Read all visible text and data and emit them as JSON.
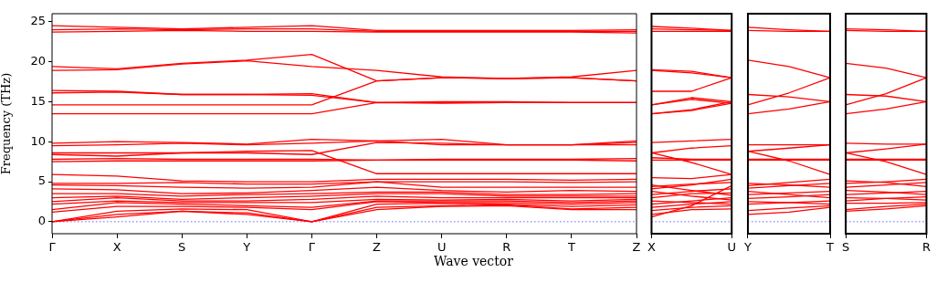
{
  "chart_data": [
    {
      "type": "line",
      "xlabel": "Wave vector",
      "ylabel": "Frequency (THz)",
      "categories": [
        "Γ",
        "X",
        "S",
        "Y",
        "Γ",
        "Z",
        "U",
        "R",
        "T",
        "Z"
      ],
      "ylim": [
        -1.5,
        26
      ],
      "yticks": [
        0,
        5,
        10,
        15,
        20,
        25
      ],
      "ref_lines": [
        {
          "axis": "y",
          "value": 0,
          "color": "#0000ff",
          "line_style": "dotted"
        }
      ],
      "series": [
        {
          "color": "#ff0000",
          "values": [
            24.5,
            24.3,
            24.1,
            24.3,
            24.5,
            23.9,
            23.9,
            23.9,
            23.9,
            24.0
          ]
        },
        {
          "color": "#ff0000",
          "values": [
            24.0,
            24.1,
            24.0,
            24.1,
            24.1,
            23.8,
            23.8,
            23.8,
            23.8,
            23.8
          ]
        },
        {
          "color": "#ff0000",
          "values": [
            23.7,
            23.8,
            23.9,
            23.8,
            23.8,
            23.7,
            23.7,
            23.7,
            23.7,
            23.6
          ]
        },
        {
          "color": "#ff0000",
          "values": [
            19.4,
            19.1,
            19.8,
            20.2,
            20.9,
            17.6,
            18.0,
            17.9,
            18.0,
            17.6
          ]
        },
        {
          "color": "#ff0000",
          "values": [
            18.9,
            19.0,
            19.7,
            20.1,
            19.4,
            18.9,
            18.1,
            17.9,
            18.1,
            18.9
          ]
        },
        {
          "color": "#ff0000",
          "values": [
            16.4,
            16.3,
            15.9,
            15.9,
            16.0,
            14.9,
            14.9,
            14.9,
            14.9,
            14.9
          ]
        },
        {
          "color": "#ff0000",
          "values": [
            16.1,
            16.2,
            15.9,
            15.9,
            15.8,
            14.9,
            15.0,
            15.0,
            14.9,
            14.9
          ]
        },
        {
          "color": "#ff0000",
          "values": [
            14.6,
            14.6,
            14.6,
            14.6,
            14.6,
            17.6,
            18.0,
            17.9,
            18.0,
            17.6
          ]
        },
        {
          "color": "#ff0000",
          "values": [
            13.5,
            13.5,
            13.5,
            13.5,
            13.5,
            14.9,
            14.8,
            14.9,
            14.9,
            14.9
          ]
        },
        {
          "color": "#ff0000",
          "values": [
            9.8,
            10.0,
            9.9,
            9.7,
            10.3,
            10.1,
            10.3,
            9.6,
            9.6,
            10.1
          ]
        },
        {
          "color": "#ff0000",
          "values": [
            9.5,
            9.6,
            9.8,
            9.6,
            9.8,
            10.1,
            9.6,
            9.6,
            9.6,
            9.6
          ]
        },
        {
          "color": "#ff0000",
          "values": [
            8.6,
            8.6,
            8.6,
            8.8,
            8.9,
            6.0,
            6.0,
            6.0,
            6.0,
            6.0
          ]
        },
        {
          "color": "#ff0000",
          "values": [
            8.4,
            8.2,
            8.6,
            8.6,
            8.4,
            9.9,
            9.8,
            9.6,
            9.6,
            9.9
          ]
        },
        {
          "color": "#ff0000",
          "values": [
            7.8,
            7.9,
            7.8,
            7.8,
            7.8,
            7.7,
            7.8,
            7.8,
            7.8,
            7.9
          ]
        },
        {
          "color": "#ff0000",
          "values": [
            7.5,
            7.6,
            7.6,
            7.6,
            7.6,
            7.7,
            7.7,
            7.7,
            7.7,
            7.6
          ]
        },
        {
          "color": "#ff0000",
          "values": [
            5.9,
            5.7,
            5.1,
            5.0,
            5.0,
            5.3,
            5.3,
            5.3,
            5.2,
            5.3
          ]
        },
        {
          "color": "#ff0000",
          "values": [
            4.8,
            4.8,
            4.9,
            4.7,
            4.7,
            5.0,
            5.0,
            5.0,
            4.9,
            5.0
          ]
        },
        {
          "color": "#ff0000",
          "values": [
            4.6,
            4.5,
            4.3,
            4.2,
            4.3,
            5.0,
            4.3,
            4.3,
            4.3,
            4.3
          ]
        },
        {
          "color": "#ff0000",
          "values": [
            4.1,
            4.0,
            3.5,
            3.6,
            3.9,
            4.3,
            3.9,
            3.7,
            3.9,
            3.8
          ]
        },
        {
          "color": "#ff0000",
          "values": [
            3.5,
            3.5,
            3.2,
            3.4,
            3.5,
            3.7,
            3.7,
            3.4,
            3.4,
            3.5
          ]
        },
        {
          "color": "#ff0000",
          "values": [
            3.0,
            3.2,
            2.8,
            3.0,
            3.2,
            3.5,
            3.5,
            3.2,
            3.2,
            3.2
          ]
        },
        {
          "color": "#ff0000",
          "values": [
            2.5,
            3.0,
            2.6,
            2.6,
            2.8,
            3.2,
            3.0,
            3.0,
            3.0,
            3.0
          ]
        },
        {
          "color": "#ff0000",
          "values": [
            2.2,
            2.6,
            2.4,
            2.4,
            2.4,
            2.8,
            2.7,
            2.8,
            2.6,
            2.8
          ]
        },
        {
          "color": "#ff0000",
          "values": [
            1.5,
            2.4,
            2.2,
            2.0,
            1.8,
            2.6,
            2.6,
            2.6,
            2.4,
            2.6
          ]
        },
        {
          "color": "#ff0000",
          "values": [
            1.2,
            1.9,
            1.9,
            1.8,
            1.5,
            2.5,
            2.4,
            2.4,
            2.2,
            2.4
          ]
        },
        {
          "color": "#ff0000",
          "values": [
            0,
            1.3,
            1.6,
            1.5,
            0,
            2.2,
            2.3,
            2.2,
            1.9,
            2.1
          ]
        },
        {
          "color": "#ff0000",
          "values": [
            0,
            0.9,
            1.3,
            1.1,
            0,
            1.8,
            2.0,
            2.1,
            1.6,
            1.8
          ]
        },
        {
          "color": "#ff0000",
          "values": [
            0,
            0.6,
            1.3,
            0.9,
            0,
            1.5,
            1.9,
            2.0,
            1.5,
            1.5
          ]
        }
      ]
    },
    {
      "type": "line",
      "tick_labels": "x",
      "categories": [
        "X",
        null,
        "U"
      ],
      "ylim": [
        -1.5,
        26
      ],
      "yticks": [
        0,
        5,
        10,
        15,
        20,
        25
      ],
      "ref_lines": [
        {
          "axis": "y",
          "value": 0,
          "color": "#0000ff",
          "line_style": "dotted"
        }
      ],
      "series": [
        {
          "color": "#ff0000",
          "values": [
            24.4,
            24.2,
            23.9
          ]
        },
        {
          "color": "#ff0000",
          "values": [
            24.1,
            24.0,
            23.9
          ]
        },
        {
          "color": "#ff0000",
          "values": [
            23.8,
            23.8,
            23.8
          ]
        },
        {
          "color": "#ff0000",
          "values": [
            19.0,
            18.8,
            18.0
          ]
        },
        {
          "color": "#ff0000",
          "values": [
            18.9,
            18.6,
            18.0
          ]
        },
        {
          "color": "#ff0000",
          "values": [
            16.3,
            16.3,
            18.0
          ]
        },
        {
          "color": "#ff0000",
          "values": [
            14.6,
            15.5,
            15.0
          ]
        },
        {
          "color": "#ff0000",
          "values": [
            14.6,
            15.3,
            14.8
          ]
        },
        {
          "color": "#ff0000",
          "values": [
            13.5,
            14.0,
            15.0
          ]
        },
        {
          "color": "#ff0000",
          "values": [
            13.5,
            13.9,
            14.8
          ]
        },
        {
          "color": "#ff0000",
          "values": [
            9.9,
            10.1,
            10.3
          ]
        },
        {
          "color": "#ff0000",
          "values": [
            8.6,
            9.2,
            9.5
          ]
        },
        {
          "color": "#ff0000",
          "values": [
            8.6,
            7.4,
            5.9
          ]
        },
        {
          "color": "#ff0000",
          "values": [
            8.0,
            7.8,
            7.8
          ]
        },
        {
          "color": "#ff0000",
          "values": [
            7.7,
            7.7,
            7.7
          ]
        },
        {
          "color": "#ff0000",
          "values": [
            5.5,
            5.4,
            5.9
          ]
        },
        {
          "color": "#ff0000",
          "values": [
            4.6,
            3.9,
            3.3
          ]
        },
        {
          "color": "#ff0000",
          "values": [
            4.4,
            4.7,
            4.9
          ]
        },
        {
          "color": "#ff0000",
          "values": [
            4.1,
            4.6,
            5.3
          ]
        },
        {
          "color": "#ff0000",
          "values": [
            3.8,
            3.2,
            2.7
          ]
        },
        {
          "color": "#ff0000",
          "values": [
            3.4,
            3.8,
            4.1
          ]
        },
        {
          "color": "#ff0000",
          "values": [
            3.0,
            3.5,
            3.6
          ]
        },
        {
          "color": "#ff0000",
          "values": [
            2.6,
            2.4,
            2.2
          ]
        },
        {
          "color": "#ff0000",
          "values": [
            2.2,
            2.6,
            3.0
          ]
        },
        {
          "color": "#ff0000",
          "values": [
            1.8,
            2.2,
            2.5
          ]
        },
        {
          "color": "#ff0000",
          "values": [
            1.4,
            1.8,
            2.0
          ]
        },
        {
          "color": "#ff0000",
          "values": [
            0.9,
            1.5,
            1.6
          ]
        },
        {
          "color": "#ff0000",
          "values": [
            0.6,
            2.0,
            4.5
          ]
        }
      ]
    },
    {
      "type": "line",
      "tick_labels": "x",
      "categories": [
        "Y",
        null,
        "T"
      ],
      "ylim": [
        -1.5,
        26
      ],
      "yticks": [
        0,
        5,
        10,
        15,
        20,
        25
      ],
      "ref_lines": [
        {
          "axis": "y",
          "value": 0,
          "color": "#0000ff",
          "line_style": "dotted"
        }
      ],
      "series": [
        {
          "color": "#ff0000",
          "values": [
            24.3,
            24.0,
            23.8
          ]
        },
        {
          "color": "#ff0000",
          "values": [
            23.9,
            23.8,
            23.8
          ]
        },
        {
          "color": "#ff0000",
          "values": [
            20.2,
            19.4,
            18.0
          ]
        },
        {
          "color": "#ff0000",
          "values": [
            15.9,
            15.6,
            15.0
          ]
        },
        {
          "color": "#ff0000",
          "values": [
            14.6,
            16.1,
            18.0
          ]
        },
        {
          "color": "#ff0000",
          "values": [
            13.5,
            14.1,
            15.0
          ]
        },
        {
          "color": "#ff0000",
          "values": [
            9.6,
            9.6,
            9.6
          ]
        },
        {
          "color": "#ff0000",
          "values": [
            8.8,
            9.2,
            9.6
          ]
        },
        {
          "color": "#ff0000",
          "values": [
            8.8,
            7.6,
            5.9
          ]
        },
        {
          "color": "#ff0000",
          "values": [
            7.8,
            7.8,
            7.8
          ]
        },
        {
          "color": "#ff0000",
          "values": [
            7.7,
            7.7,
            7.7
          ]
        },
        {
          "color": "#ff0000",
          "values": [
            4.8,
            4.6,
            4.3
          ]
        },
        {
          "color": "#ff0000",
          "values": [
            4.5,
            4.9,
            5.3
          ]
        },
        {
          "color": "#ff0000",
          "values": [
            4.2,
            4.5,
            4.8
          ]
        },
        {
          "color": "#ff0000",
          "values": [
            3.8,
            3.4,
            3.0
          ]
        },
        {
          "color": "#ff0000",
          "values": [
            3.4,
            3.6,
            3.8
          ]
        },
        {
          "color": "#ff0000",
          "values": [
            2.9,
            3.1,
            3.4
          ]
        },
        {
          "color": "#ff0000",
          "values": [
            2.5,
            2.4,
            2.2
          ]
        },
        {
          "color": "#ff0000",
          "values": [
            2.2,
            2.4,
            2.6
          ]
        },
        {
          "color": "#ff0000",
          "values": [
            1.4,
            1.7,
            2.0
          ]
        },
        {
          "color": "#ff0000",
          "values": [
            0.9,
            1.2,
            1.8
          ]
        }
      ]
    },
    {
      "type": "line",
      "tick_labels": "x",
      "categories": [
        "S",
        null,
        "R"
      ],
      "ylim": [
        -1.5,
        26
      ],
      "yticks": [
        0,
        5,
        10,
        15,
        20,
        25
      ],
      "ref_lines": [
        {
          "axis": "y",
          "value": 0,
          "color": "#0000ff",
          "line_style": "dotted"
        }
      ],
      "series": [
        {
          "color": "#ff0000",
          "values": [
            24.1,
            24.0,
            23.8
          ]
        },
        {
          "color": "#ff0000",
          "values": [
            23.9,
            23.8,
            23.8
          ]
        },
        {
          "color": "#ff0000",
          "values": [
            19.8,
            19.2,
            18.0
          ]
        },
        {
          "color": "#ff0000",
          "values": [
            15.9,
            15.7,
            15.0
          ]
        },
        {
          "color": "#ff0000",
          "values": [
            14.6,
            16.0,
            18.0
          ]
        },
        {
          "color": "#ff0000",
          "values": [
            13.5,
            14.1,
            15.0
          ]
        },
        {
          "color": "#ff0000",
          "values": [
            9.8,
            9.7,
            9.7
          ]
        },
        {
          "color": "#ff0000",
          "values": [
            8.6,
            9.1,
            9.7
          ]
        },
        {
          "color": "#ff0000",
          "values": [
            8.6,
            7.5,
            5.9
          ]
        },
        {
          "color": "#ff0000",
          "values": [
            7.8,
            7.8,
            7.8
          ]
        },
        {
          "color": "#ff0000",
          "values": [
            7.7,
            7.7,
            7.7
          ]
        },
        {
          "color": "#ff0000",
          "values": [
            5.1,
            4.9,
            4.4
          ]
        },
        {
          "color": "#ff0000",
          "values": [
            4.8,
            5.0,
            5.3
          ]
        },
        {
          "color": "#ff0000",
          "values": [
            4.3,
            4.6,
            4.9
          ]
        },
        {
          "color": "#ff0000",
          "values": [
            3.9,
            3.7,
            3.4
          ]
        },
        {
          "color": "#ff0000",
          "values": [
            3.4,
            3.6,
            3.8
          ]
        },
        {
          "color": "#ff0000",
          "values": [
            3.0,
            2.9,
            2.7
          ]
        },
        {
          "color": "#ff0000",
          "values": [
            2.6,
            2.9,
            3.1
          ]
        },
        {
          "color": "#ff0000",
          "values": [
            2.3,
            2.3,
            2.4
          ]
        },
        {
          "color": "#ff0000",
          "values": [
            1.5,
            1.9,
            2.2
          ]
        },
        {
          "color": "#ff0000",
          "values": [
            1.3,
            1.6,
            2.0
          ]
        }
      ]
    }
  ]
}
